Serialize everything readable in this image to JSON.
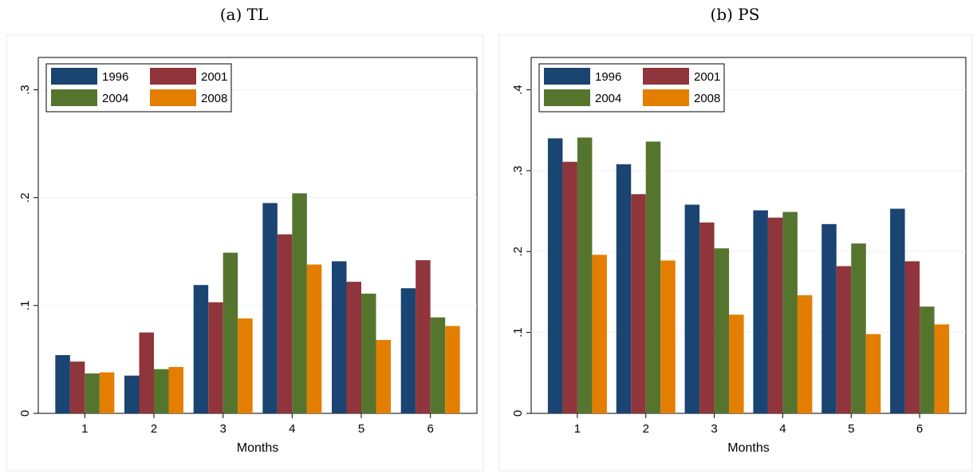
{
  "chart_data": [
    {
      "type": "bar",
      "title": "(a) TL",
      "xlabel": "Months",
      "ylabel": "",
      "categories": [
        "1",
        "2",
        "3",
        "4",
        "5",
        "6"
      ],
      "yticks": [
        0,
        0.1,
        0.2,
        0.3
      ],
      "ytick_labels": [
        "0",
        ".1",
        ".2",
        ".3"
      ],
      "ylim": [
        0,
        0.33
      ],
      "grid": true,
      "legend_position": "top-left",
      "series": [
        {
          "name": "1996",
          "color": "#1a4471",
          "values": [
            0.054,
            0.035,
            0.119,
            0.195,
            0.141,
            0.116
          ]
        },
        {
          "name": "2001",
          "color": "#90353b",
          "values": [
            0.048,
            0.075,
            0.103,
            0.166,
            0.122,
            0.142
          ]
        },
        {
          "name": "2004",
          "color": "#55752f",
          "values": [
            0.037,
            0.041,
            0.149,
            0.204,
            0.111,
            0.089
          ]
        },
        {
          "name": "2008",
          "color": "#e37e00",
          "values": [
            0.038,
            0.043,
            0.088,
            0.138,
            0.068,
            0.081
          ]
        }
      ]
    },
    {
      "type": "bar",
      "title": "(b) PS",
      "xlabel": "Months",
      "ylabel": "",
      "categories": [
        "1",
        "2",
        "3",
        "4",
        "5",
        "6"
      ],
      "yticks": [
        0,
        0.1,
        0.2,
        0.3,
        0.4
      ],
      "ytick_labels": [
        "0",
        ".1",
        ".2",
        ".3",
        ".4"
      ],
      "ylim": [
        0,
        0.44
      ],
      "grid": true,
      "legend_position": "top-left",
      "series": [
        {
          "name": "1996",
          "color": "#1a4471",
          "values": [
            0.34,
            0.308,
            0.258,
            0.251,
            0.234,
            0.253
          ]
        },
        {
          "name": "2001",
          "color": "#90353b",
          "values": [
            0.311,
            0.271,
            0.236,
            0.242,
            0.182,
            0.188
          ]
        },
        {
          "name": "2004",
          "color": "#55752f",
          "values": [
            0.341,
            0.336,
            0.204,
            0.249,
            0.21,
            0.132
          ]
        },
        {
          "name": "2008",
          "color": "#e37e00",
          "values": [
            0.196,
            0.189,
            0.122,
            0.146,
            0.098,
            0.11
          ]
        }
      ]
    }
  ]
}
